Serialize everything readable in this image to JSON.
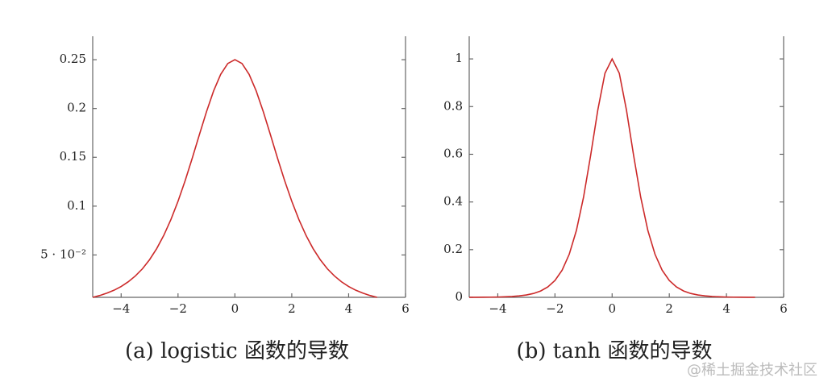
{
  "chart_data": [
    {
      "type": "line",
      "title": "(a) logistic 函数的导数",
      "x": [
        -5,
        -4.75,
        -4.5,
        -4.25,
        -4,
        -3.75,
        -3.5,
        -3.25,
        -3,
        -2.75,
        -2.5,
        -2.25,
        -2,
        -1.75,
        -1.5,
        -1.25,
        -1,
        -0.75,
        -0.5,
        -0.25,
        0,
        0.25,
        0.5,
        0.75,
        1,
        1.25,
        1.5,
        1.75,
        2,
        2.25,
        2.5,
        2.75,
        3,
        3.25,
        3.5,
        3.75,
        4,
        4.25,
        4.5,
        4.75,
        5
      ],
      "series": [
        {
          "color": "#cc2a2a",
          "values": [
            0.0066,
            0.0085,
            0.0109,
            0.0139,
            0.0177,
            0.0225,
            0.0285,
            0.0359,
            0.0452,
            0.0565,
            0.0701,
            0.0863,
            0.105,
            0.1261,
            0.1491,
            0.1731,
            0.1966,
            0.2179,
            0.235,
            0.2461,
            0.25,
            0.2461,
            0.235,
            0.2179,
            0.1966,
            0.1731,
            0.1491,
            0.1261,
            0.105,
            0.0863,
            0.0701,
            0.0565,
            0.0452,
            0.0359,
            0.0285,
            0.0225,
            0.0177,
            0.0139,
            0.0109,
            0.0085,
            0.0066
          ]
        }
      ],
      "xlim": [
        -5,
        6
      ],
      "xticks": [
        {
          "value": -4,
          "label": "−4"
        },
        {
          "value": -2,
          "label": "−2"
        },
        0,
        2,
        4,
        6
      ],
      "ylim": [
        0.0066,
        0.274
      ],
      "yticks": [
        {
          "value": 0.05,
          "label": "5 · 10⁻²"
        },
        0.1,
        0.15,
        0.2,
        0.25
      ]
    },
    {
      "type": "line",
      "title": "(b) tanh 函数的导数",
      "x": [
        -5,
        -4.75,
        -4.5,
        -4.25,
        -4,
        -3.75,
        -3.5,
        -3.25,
        -3,
        -2.75,
        -2.5,
        -2.25,
        -2,
        -1.75,
        -1.5,
        -1.25,
        -1,
        -0.75,
        -0.5,
        -0.25,
        0,
        0.25,
        0.5,
        0.75,
        1,
        1.25,
        1.5,
        1.75,
        2,
        2.25,
        2.5,
        2.75,
        3,
        3.25,
        3.5,
        3.75,
        4,
        4.25,
        4.5,
        4.75,
        5
      ],
      "series": [
        {
          "color": "#cc2a2a",
          "values": [
            0.0002,
            0.0003,
            0.0005,
            0.0008,
            0.0013,
            0.0022,
            0.0036,
            0.006,
            0.0099,
            0.0162,
            0.0266,
            0.0435,
            0.0707,
            0.1138,
            0.1807,
            0.2804,
            0.42,
            0.5966,
            0.7864,
            0.94,
            1,
            0.94,
            0.7864,
            0.5966,
            0.42,
            0.2804,
            0.1807,
            0.1138,
            0.0707,
            0.0435,
            0.0266,
            0.0162,
            0.0099,
            0.006,
            0.0036,
            0.0022,
            0.0013,
            0.0008,
            0.0005,
            0.0003,
            0.0002
          ]
        }
      ],
      "xlim": [
        -5,
        6
      ],
      "xticks": [
        {
          "value": -4,
          "label": "−4"
        },
        {
          "value": -2,
          "label": "−2"
        },
        0,
        2,
        4,
        6
      ],
      "ylim": [
        0,
        1.095
      ],
      "yticks": [
        0,
        0.2,
        0.4,
        0.6,
        0.8,
        1
      ]
    }
  ],
  "watermark": "@稀土掘金技术社区"
}
